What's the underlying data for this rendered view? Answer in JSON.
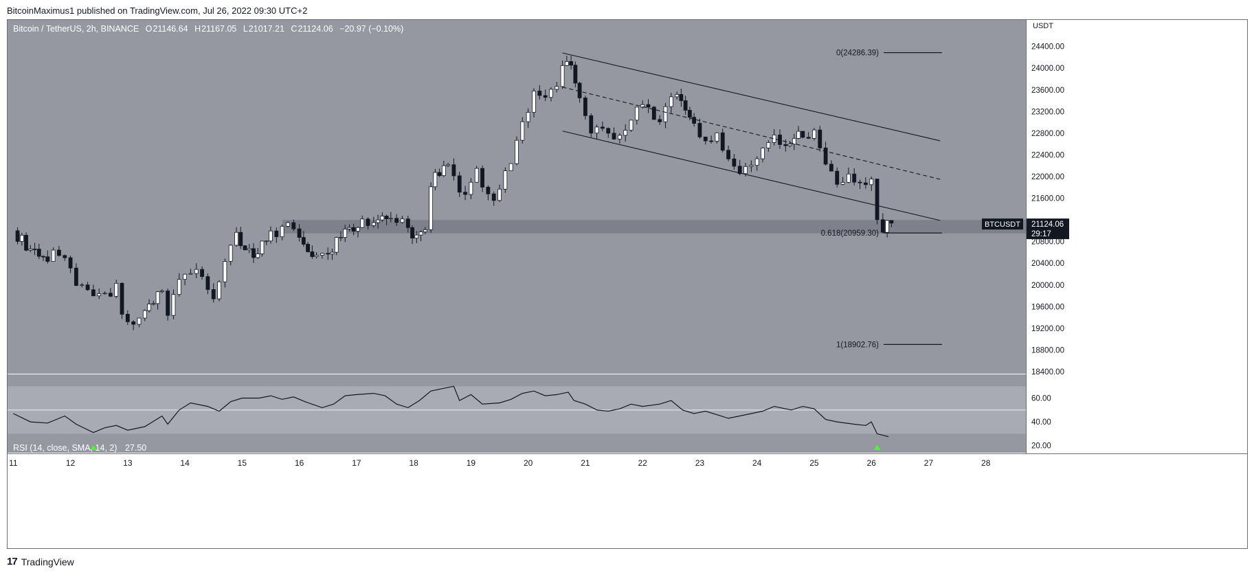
{
  "header": {
    "publisher": "BitcoinMaximus1 published on TradingView.com, Jul 26, 2022 09:30 UTC+2"
  },
  "legend": {
    "symbol": "Bitcoin / TetherUS, 2h, BINANCE",
    "o_label": "O",
    "o_value": "21146.64",
    "h_label": "H",
    "h_value": "21167.05",
    "l_label": "L",
    "l_value": "21017.21",
    "c_label": "C",
    "c_value": "21124.06",
    "change": "−20.97 (−0.10%)"
  },
  "price_axis": {
    "unit": "USDT",
    "ticks": [
      "24400.00",
      "24000.00",
      "23600.00",
      "23200.00",
      "22800.00",
      "22400.00",
      "22000.00",
      "21600.00",
      "20800.00",
      "20400.00",
      "20000.00",
      "19600.00",
      "19200.00",
      "18800.00",
      "18400.00"
    ],
    "last_price": "21124.06",
    "countdown": "29:17",
    "symbol_tag": "BTCUSDT"
  },
  "fib_levels": [
    {
      "label": "0(24286.39)",
      "price": 24286.39
    },
    {
      "label": "0.618(20959.30)",
      "price": 20959.3
    },
    {
      "label": "1(18902.76)",
      "price": 18902.76
    }
  ],
  "rsi": {
    "legend": "RSI (14, close, SMA, 14, 2)",
    "value": "27.50",
    "ticks": [
      "60.00",
      "40.00",
      "20.00"
    ]
  },
  "time_axis": {
    "labels": [
      "11",
      "12",
      "13",
      "14",
      "15",
      "16",
      "17",
      "18",
      "19",
      "20",
      "21",
      "22",
      "23",
      "24",
      "25",
      "26",
      "27",
      "28"
    ]
  },
  "footer": {
    "brand": "TradingView",
    "logo_mark": "17"
  },
  "colors": {
    "chart_bg": "#9598a1",
    "rsi_band": "#a9abb2",
    "support_zone": "#7b7e88",
    "candle_up": "#ffffff",
    "candle_down": "#131722",
    "signal_arrow": "#53f13c",
    "price_tag_bg": "#131722"
  },
  "chart_data": {
    "type": "candlestick",
    "title": "Bitcoin / TetherUS, 2h, BINANCE",
    "price_range": [
      18400,
      24700
    ],
    "support_zone": [
      20950,
      21200
    ],
    "channel": {
      "upper": [
        {
          "day": 20.6,
          "price": 24280
        },
        {
          "day": 27.2,
          "price": 22660
        }
      ],
      "middle": [
        {
          "day": 20.6,
          "price": 23650
        },
        {
          "day": 27.2,
          "price": 21950
        }
      ],
      "lower": [
        {
          "day": 20.6,
          "price": 22840
        },
        {
          "day": 27.2,
          "price": 21190
        }
      ]
    },
    "price_path": [
      [
        11.0,
        21000
      ],
      [
        11.3,
        20650
      ],
      [
        11.6,
        20500
      ],
      [
        11.8,
        20650
      ],
      [
        12.0,
        20250
      ],
      [
        12.2,
        19950
      ],
      [
        12.4,
        19700
      ],
      [
        12.6,
        19800
      ],
      [
        12.8,
        19950
      ],
      [
        12.9,
        19450
      ],
      [
        13.1,
        19300
      ],
      [
        13.3,
        19500
      ],
      [
        13.6,
        19900
      ],
      [
        13.7,
        19350
      ],
      [
        13.8,
        19800
      ],
      [
        14.0,
        20300
      ],
      [
        14.2,
        20200
      ],
      [
        14.4,
        19900
      ],
      [
        14.5,
        19700
      ],
      [
        14.7,
        20350
      ],
      [
        14.9,
        20900
      ],
      [
        15.2,
        20600
      ],
      [
        15.5,
        20900
      ],
      [
        15.7,
        21000
      ],
      [
        15.9,
        21100
      ],
      [
        16.0,
        20800
      ],
      [
        16.3,
        20550
      ],
      [
        16.5,
        20600
      ],
      [
        16.8,
        21000
      ],
      [
        17.1,
        21200
      ],
      [
        17.3,
        21200
      ],
      [
        17.6,
        21200
      ],
      [
        17.8,
        21200
      ],
      [
        17.9,
        20950
      ],
      [
        18.2,
        21000
      ],
      [
        18.3,
        21900
      ],
      [
        18.6,
        22300
      ],
      [
        18.7,
        22000
      ],
      [
        18.9,
        21600
      ],
      [
        19.1,
        22200
      ],
      [
        19.2,
        21800
      ],
      [
        19.4,
        21600
      ],
      [
        19.6,
        22000
      ],
      [
        19.7,
        22200
      ],
      [
        19.9,
        23000
      ],
      [
        20.1,
        23500
      ],
      [
        20.3,
        23400
      ],
      [
        20.5,
        23700
      ],
      [
        20.6,
        24100
      ],
      [
        20.75,
        24000
      ],
      [
        20.9,
        23550
      ],
      [
        21.1,
        22900
      ],
      [
        21.3,
        22800
      ],
      [
        21.5,
        22700
      ],
      [
        21.7,
        22750
      ],
      [
        21.9,
        23200
      ],
      [
        22.1,
        23250
      ],
      [
        22.3,
        23050
      ],
      [
        22.5,
        23400
      ],
      [
        22.6,
        23600
      ],
      [
        22.9,
        22900
      ],
      [
        23.1,
        22700
      ],
      [
        23.3,
        22800
      ],
      [
        23.5,
        22350
      ],
      [
        23.7,
        22100
      ],
      [
        23.9,
        22300
      ],
      [
        24.1,
        22450
      ],
      [
        24.3,
        22700
      ],
      [
        24.5,
        22650
      ],
      [
        24.8,
        22800
      ],
      [
        25.0,
        22800
      ],
      [
        25.2,
        22250
      ],
      [
        25.4,
        21900
      ],
      [
        25.6,
        21950
      ],
      [
        25.8,
        21900
      ],
      [
        26.0,
        21900
      ],
      [
        26.1,
        21300
      ],
      [
        26.2,
        21050
      ],
      [
        26.35,
        21124
      ]
    ],
    "rsi_path": [
      [
        11.0,
        47
      ],
      [
        11.3,
        40
      ],
      [
        11.6,
        39
      ],
      [
        11.9,
        45
      ],
      [
        12.1,
        38
      ],
      [
        12.4,
        31
      ],
      [
        12.6,
        35
      ],
      [
        12.8,
        37
      ],
      [
        13.0,
        33
      ],
      [
        13.3,
        36
      ],
      [
        13.6,
        45
      ],
      [
        13.7,
        38
      ],
      [
        13.9,
        50
      ],
      [
        14.1,
        56
      ],
      [
        14.4,
        53
      ],
      [
        14.6,
        49
      ],
      [
        14.8,
        57
      ],
      [
        15.0,
        60
      ],
      [
        15.3,
        60
      ],
      [
        15.5,
        62
      ],
      [
        15.7,
        59
      ],
      [
        15.9,
        61
      ],
      [
        16.1,
        57
      ],
      [
        16.4,
        52
      ],
      [
        16.6,
        55
      ],
      [
        16.8,
        62
      ],
      [
        17.0,
        63
      ],
      [
        17.3,
        64
      ],
      [
        17.5,
        62
      ],
      [
        17.7,
        55
      ],
      [
        17.9,
        52
      ],
      [
        18.1,
        58
      ],
      [
        18.3,
        66
      ],
      [
        18.5,
        68
      ],
      [
        18.7,
        70
      ],
      [
        18.8,
        58
      ],
      [
        19.0,
        63
      ],
      [
        19.2,
        55
      ],
      [
        19.5,
        56
      ],
      [
        19.7,
        59
      ],
      [
        19.9,
        64
      ],
      [
        20.1,
        66
      ],
      [
        20.3,
        62
      ],
      [
        20.5,
        63
      ],
      [
        20.7,
        65
      ],
      [
        20.8,
        58
      ],
      [
        21.0,
        55
      ],
      [
        21.2,
        50
      ],
      [
        21.4,
        49
      ],
      [
        21.6,
        51
      ],
      [
        21.8,
        55
      ],
      [
        22.0,
        53
      ],
      [
        22.3,
        55
      ],
      [
        22.5,
        58
      ],
      [
        22.7,
        50
      ],
      [
        22.9,
        47
      ],
      [
        23.1,
        49
      ],
      [
        23.3,
        46
      ],
      [
        23.5,
        43
      ],
      [
        23.7,
        45
      ],
      [
        23.9,
        47
      ],
      [
        24.1,
        49
      ],
      [
        24.3,
        53
      ],
      [
        24.6,
        50
      ],
      [
        24.8,
        53
      ],
      [
        25.0,
        51
      ],
      [
        25.2,
        42
      ],
      [
        25.4,
        40
      ],
      [
        25.7,
        38
      ],
      [
        25.9,
        37
      ],
      [
        26.0,
        40
      ],
      [
        26.1,
        30
      ],
      [
        26.3,
        27.5
      ]
    ],
    "rsi_range": [
      14,
      80
    ],
    "rsi_band": [
      30,
      70
    ],
    "bullish_divergence_markers": [
      {
        "day": 12.4
      },
      {
        "day": 26.1
      }
    ],
    "x_range_days": [
      10.9,
      28.7
    ]
  }
}
